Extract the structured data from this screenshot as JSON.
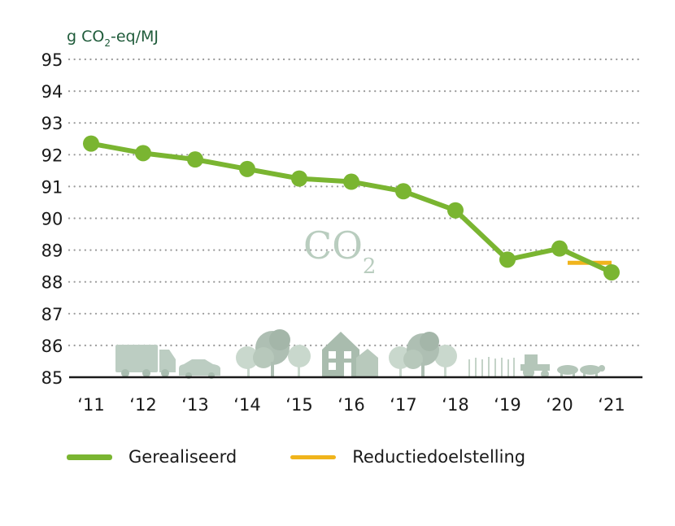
{
  "chart_data": {
    "type": "line",
    "unit_label": {
      "pre": "g CO",
      "sub": "2",
      "post": "-eq/MJ"
    },
    "ylim": [
      85,
      95
    ],
    "y_ticks": [
      "95",
      "94",
      "93",
      "92",
      "91",
      "90",
      "89",
      "88",
      "87",
      "86",
      "85"
    ],
    "categories": [
      "‘11",
      "‘12",
      "‘13",
      "‘14",
      "‘15",
      "‘16",
      "‘17",
      "‘18",
      "‘19",
      "‘20",
      "‘21"
    ],
    "series": [
      {
        "name": "Gerealiseerd",
        "color": "#7ab531",
        "values": [
          92.35,
          92.05,
          91.85,
          91.55,
          91.25,
          91.15,
          90.85,
          90.25,
          88.7,
          89.05,
          88.3
        ]
      },
      {
        "name": "Reductiedoelstelling",
        "color": "#f0b41c",
        "segment_categories": [
          "‘20",
          "‘21"
        ],
        "value": 88.6
      }
    ],
    "grid": "horizontal-dotted",
    "legend_position": "bottom-left",
    "watermark": {
      "main": "CO",
      "sub": "2"
    }
  }
}
